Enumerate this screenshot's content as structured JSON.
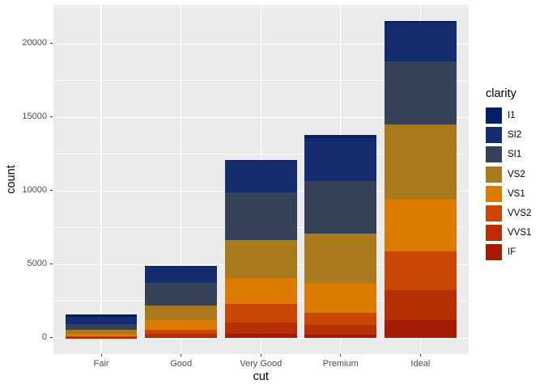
{
  "chart_data": {
    "type": "bar",
    "stacked": true,
    "xlabel": "cut",
    "ylabel": "count",
    "legend_title": "clarity",
    "legend_position": "right",
    "categories": [
      "Fair",
      "Good",
      "Very Good",
      "Premium",
      "Ideal"
    ],
    "series": [
      {
        "name": "I1",
        "color": "#051c66",
        "values": [
          210,
          96,
          84,
          205,
          146
        ]
      },
      {
        "name": "SI2",
        "color": "#142c6e",
        "values": [
          466,
          1081,
          2100,
          2949,
          2598
        ]
      },
      {
        "name": "SI1",
        "color": "#364259",
        "values": [
          408,
          1560,
          3240,
          3575,
          4282
        ]
      },
      {
        "name": "VS2",
        "color": "#a87a1d",
        "values": [
          261,
          978,
          2591,
          3357,
          5071
        ]
      },
      {
        "name": "VS1",
        "color": "#db7c00",
        "values": [
          170,
          648,
          1775,
          1989,
          3589
        ]
      },
      {
        "name": "VVS2",
        "color": "#c94702",
        "values": [
          69,
          286,
          1235,
          870,
          2606
        ]
      },
      {
        "name": "VVS1",
        "color": "#b52e04",
        "values": [
          17,
          186,
          789,
          616,
          2047
        ]
      },
      {
        "name": "IF",
        "color": "#a61b03",
        "values": [
          9,
          71,
          268,
          230,
          1212
        ]
      }
    ],
    "stack_order_bottom_to_top": [
      "IF",
      "VVS1",
      "VVS2",
      "VS1",
      "VS2",
      "SI1",
      "SI2",
      "I1"
    ],
    "totals": [
      1610,
      4906,
      12082,
      13791,
      21551
    ],
    "y_ticks": [
      0,
      5000,
      10000,
      15000,
      20000
    ],
    "y_tick_labels": [
      "0",
      "5000",
      "10000",
      "15000",
      "20000"
    ],
    "y_minor_ticks": [
      2500,
      7500,
      12500,
      17500,
      22500
    ],
    "ylim": [
      -1078,
      22629
    ],
    "grid": true,
    "panel_bg": "#EBEBEB",
    "grid_color": "#FFFFFF",
    "axis_text_color": "#4D4D4D",
    "axis_title_color": "#000000"
  }
}
